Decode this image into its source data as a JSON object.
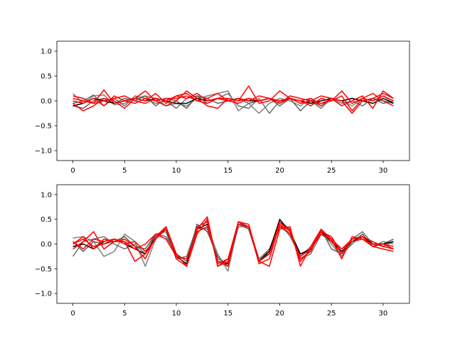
{
  "chart_data": [
    {
      "type": "line",
      "title": "",
      "xlabel": "",
      "ylabel": "",
      "xlim": [
        -1.55,
        32.55
      ],
      "ylim": [
        -1.2,
        1.2
      ],
      "xticks": [
        0,
        5,
        10,
        15,
        20,
        25,
        30
      ],
      "yticks": [
        -1.0,
        -0.5,
        0.0,
        0.5,
        1.0
      ],
      "xtick_labels": [
        "0",
        "5",
        "10",
        "15",
        "20",
        "25",
        "30"
      ],
      "ytick_labels": [
        "−1.0",
        "−0.5",
        "0.0",
        "0.5",
        "1.0"
      ],
      "grid": false,
      "x": [
        0,
        1,
        2,
        3,
        4,
        5,
        6,
        7,
        8,
        9,
        10,
        11,
        12,
        13,
        14,
        15,
        16,
        17,
        18,
        19,
        20,
        21,
        22,
        23,
        24,
        25,
        26,
        27,
        28,
        29,
        30,
        31
      ],
      "series": [
        {
          "color": "#808080",
          "values": [
            0.15,
            -0.05,
            0.1,
            0.12,
            -0.08,
            -0.05,
            0.05,
            0.1,
            0.05,
            -0.1,
            -0.05,
            -0.1,
            0.05,
            0.1,
            0.15,
            0.2,
            -0.2,
            -0.05,
            -0.25,
            -0.05,
            0.05,
            0.0,
            -0.1,
            0.05,
            -0.05,
            0.05,
            0.0,
            -0.1,
            0.05,
            0.0,
            0.1,
            -0.05
          ]
        },
        {
          "color": "#707070",
          "values": [
            -0.05,
            0.0,
            0.12,
            -0.1,
            0.05,
            -0.1,
            0.1,
            0.05,
            -0.05,
            0.0,
            -0.15,
            0.05,
            0.1,
            -0.05,
            0.05,
            0.15,
            -0.1,
            -0.15,
            0.05,
            -0.25,
            0.0,
            0.05,
            -0.05,
            0.0,
            -0.15,
            0.05,
            -0.05,
            0.0,
            -0.1,
            0.05,
            0.0,
            -0.05
          ]
        },
        {
          "color": "#606060",
          "values": [
            -0.1,
            -0.15,
            0.0,
            0.05,
            -0.05,
            0.05,
            0.0,
            0.1,
            -0.1,
            0.05,
            0.0,
            -0.15,
            0.1,
            0.05,
            -0.05,
            0.0,
            0.05,
            -0.05,
            0.0,
            0.05,
            -0.1,
            0.05,
            -0.2,
            0.0,
            -0.1,
            0.05,
            0.0,
            0.05,
            0.0,
            0.05,
            -0.05,
            0.0
          ]
        },
        {
          "color": "#000000",
          "values": [
            -0.1,
            -0.05,
            0.05,
            0.0,
            -0.05,
            0.0,
            0.05,
            0.0,
            0.05,
            0.0,
            -0.05,
            -0.05,
            0.05,
            0.0,
            0.05,
            0.0,
            0.05,
            0.0,
            0.0,
            0.05,
            0.0,
            0.05,
            0.0,
            -0.05,
            0.0,
            0.05,
            0.0,
            0.05,
            0.0,
            -0.05,
            0.05,
            -0.05
          ]
        },
        {
          "color": "#ff0000",
          "values": [
            0.05,
            0.0,
            -0.05,
            0.22,
            -0.05,
            0.0,
            0.05,
            0.0,
            0.15,
            -0.05,
            0.1,
            0.15,
            0.0,
            -0.05,
            0.05,
            0.05,
            0.0,
            0.3,
            -0.05,
            0.0,
            0.2,
            0.05,
            0.0,
            -0.1,
            0.05,
            0.0,
            0.1,
            -0.2,
            0.05,
            0.15,
            0.0,
            -0.1
          ]
        },
        {
          "color": "#ff0000",
          "values": [
            -0.05,
            -0.2,
            -0.1,
            0.05,
            0.0,
            -0.15,
            0.05,
            0.2,
            0.0,
            0.05,
            0.05,
            0.1,
            0.0,
            0.05,
            0.15,
            0.0,
            0.05,
            0.0,
            0.1,
            0.05,
            -0.05,
            0.1,
            0.05,
            0.0,
            -0.05,
            0.0,
            0.2,
            -0.05,
            0.05,
            0.0,
            0.1,
            0.0
          ]
        },
        {
          "color": "#ff0000",
          "values": [
            0.0,
            -0.05,
            0.05,
            -0.1,
            0.1,
            0.0,
            -0.05,
            0.05,
            0.0,
            -0.1,
            0.0,
            0.2,
            0.05,
            -0.1,
            -0.15,
            0.05,
            0.0,
            0.05,
            0.0,
            0.05,
            -0.05,
            0.05,
            0.0,
            0.05,
            -0.1,
            0.05,
            0.0,
            -0.25,
            0.0,
            0.05,
            0.15,
            0.05
          ]
        },
        {
          "color": "#ff0000",
          "values": [
            0.1,
            0.05,
            -0.05,
            0.0,
            0.05,
            0.1,
            0.0,
            -0.05,
            0.05,
            0.0,
            0.1,
            0.05,
            0.15,
            0.0,
            0.05,
            0.0,
            -0.05,
            0.05,
            0.0,
            0.05,
            0.0,
            0.05,
            -0.05,
            0.0,
            0.1,
            0.05,
            -0.1,
            0.0,
            0.1,
            -0.15,
            0.2,
            0.05
          ]
        }
      ]
    },
    {
      "type": "line",
      "title": "",
      "xlabel": "",
      "ylabel": "",
      "xlim": [
        -1.55,
        32.55
      ],
      "ylim": [
        -1.2,
        1.2
      ],
      "xticks": [
        0,
        5,
        10,
        15,
        20,
        25,
        30
      ],
      "yticks": [
        -1.0,
        -0.5,
        0.0,
        0.5,
        1.0
      ],
      "xtick_labels": [
        "0",
        "5",
        "10",
        "15",
        "20",
        "25",
        "30"
      ],
      "ytick_labels": [
        "−1.0",
        "−0.5",
        "0.0",
        "0.5",
        "1.0"
      ],
      "grid": false,
      "x": [
        0,
        1,
        2,
        3,
        4,
        5,
        6,
        7,
        8,
        9,
        10,
        11,
        12,
        13,
        14,
        15,
        16,
        17,
        18,
        19,
        20,
        21,
        22,
        23,
        24,
        25,
        26,
        27,
        28,
        29,
        30,
        31
      ],
      "series": [
        {
          "color": "#808080",
          "values": [
            0.12,
            0.15,
            0.05,
            -0.25,
            -0.15,
            0.2,
            0.05,
            -0.45,
            0.1,
            0.35,
            -0.2,
            -0.45,
            0.25,
            0.35,
            -0.2,
            -0.55,
            0.4,
            0.3,
            -0.3,
            -0.1,
            0.45,
            0.15,
            -0.25,
            -0.05,
            0.25,
            0.0,
            -0.25,
            0.05,
            0.2,
            -0.05,
            0.05,
            0.0
          ]
        },
        {
          "color": "#707070",
          "values": [
            -0.25,
            0.05,
            0.1,
            0.15,
            0.0,
            -0.1,
            0.0,
            -0.2,
            0.2,
            0.25,
            -0.3,
            -0.25,
            0.35,
            0.3,
            -0.3,
            -0.4,
            0.35,
            0.35,
            -0.3,
            -0.2,
            0.45,
            0.3,
            -0.3,
            -0.2,
            0.2,
            0.05,
            -0.2,
            0.1,
            0.25,
            0.0,
            -0.05,
            0.05
          ]
        },
        {
          "color": "#606060",
          "values": [
            0.05,
            -0.15,
            0.05,
            0.0,
            0.05,
            0.15,
            -0.05,
            -0.1,
            0.2,
            0.15,
            -0.2,
            -0.35,
            0.4,
            0.25,
            -0.25,
            -0.45,
            0.45,
            0.3,
            -0.35,
            -0.1,
            0.35,
            0.2,
            -0.2,
            -0.15,
            0.3,
            -0.1,
            -0.2,
            0.0,
            0.2,
            -0.05,
            0.0,
            0.1
          ]
        },
        {
          "color": "#000000",
          "values": [
            -0.05,
            0.0,
            -0.1,
            0.05,
            0.1,
            0.0,
            -0.1,
            -0.2,
            0.15,
            0.3,
            -0.25,
            -0.4,
            0.3,
            0.4,
            -0.35,
            -0.4,
            0.4,
            0.35,
            -0.35,
            -0.15,
            0.5,
            0.25,
            -0.2,
            -0.1,
            0.25,
            0.05,
            -0.15,
            0.05,
            0.15,
            0.0,
            0.0,
            0.05
          ]
        },
        {
          "color": "#ff0000",
          "values": [
            0.0,
            0.15,
            -0.1,
            0.1,
            0.05,
            0.05,
            -0.35,
            -0.2,
            0.1,
            0.3,
            -0.2,
            -0.45,
            0.2,
            0.5,
            -0.45,
            -0.3,
            0.4,
            0.35,
            -0.35,
            -0.45,
            0.3,
            0.35,
            -0.45,
            -0.05,
            0.3,
            0.1,
            -0.1,
            0.1,
            0.15,
            -0.05,
            0.0,
            -0.1
          ]
        },
        {
          "color": "#ff0000",
          "values": [
            -0.1,
            0.05,
            0.25,
            -0.1,
            0.05,
            0.1,
            -0.05,
            -0.3,
            0.15,
            0.35,
            -0.2,
            -0.45,
            0.35,
            0.45,
            -0.4,
            -0.3,
            0.45,
            0.4,
            -0.35,
            -0.2,
            0.35,
            0.3,
            -0.35,
            -0.1,
            0.2,
            0.1,
            -0.3,
            0.15,
            0.1,
            -0.05,
            -0.1,
            -0.15
          ]
        },
        {
          "color": "#ff0000",
          "values": [
            0.05,
            -0.1,
            0.1,
            0.05,
            0.1,
            0.0,
            0.05,
            -0.15,
            0.1,
            0.35,
            -0.3,
            -0.45,
            0.3,
            0.55,
            -0.45,
            -0.35,
            0.4,
            0.35,
            -0.4,
            -0.3,
            0.4,
            0.2,
            -0.25,
            -0.1,
            0.25,
            0.15,
            -0.2,
            0.1,
            0.15,
            0.05,
            -0.05,
            -0.1
          ]
        },
        {
          "color": "#ff0000",
          "values": [
            0.0,
            0.1,
            -0.05,
            0.0,
            0.1,
            0.05,
            -0.1,
            0.0,
            0.2,
            0.1,
            -0.25,
            -0.3,
            0.25,
            0.35,
            -0.35,
            -0.45,
            0.45,
            0.35,
            -0.35,
            -0.2,
            0.45,
            0.25,
            -0.3,
            -0.15,
            0.3,
            0.05,
            -0.1,
            0.05,
            0.1,
            0.0,
            0.0,
            -0.05
          ]
        }
      ]
    }
  ]
}
